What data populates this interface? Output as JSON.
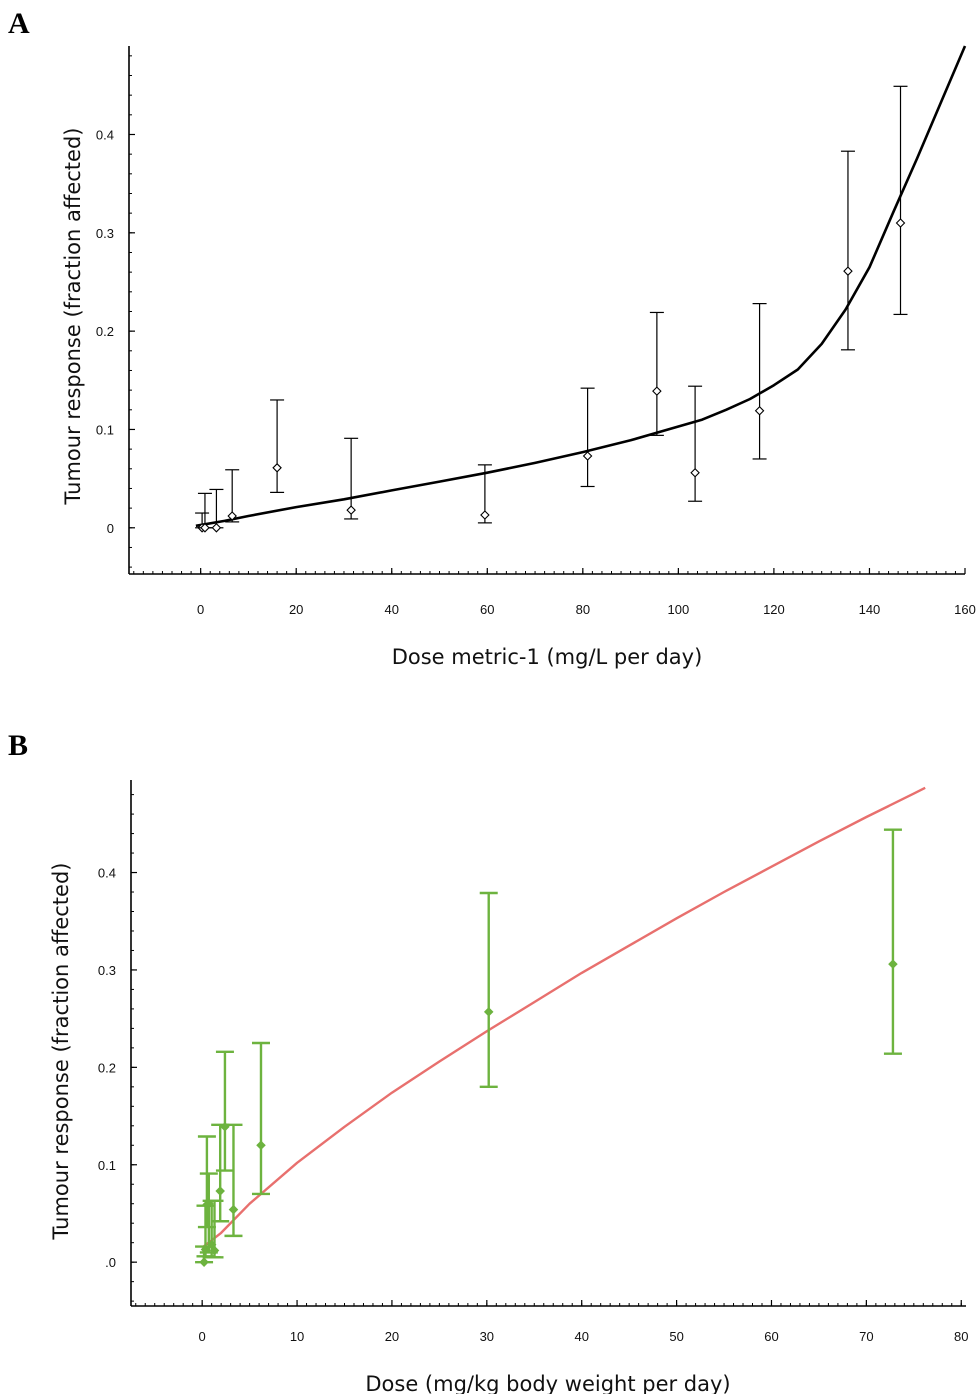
{
  "chart_data": [
    {
      "panel_label": "A",
      "type": "line",
      "xlabel": "Dose metric-1 (mg/L per day)",
      "ylabel": "Tumour response (fraction affected)",
      "xlim": [
        -15,
        160
      ],
      "ylim": [
        -0.047,
        0.49
      ],
      "xticks": [
        0,
        20,
        40,
        60,
        80,
        100,
        120,
        140,
        160
      ],
      "xtick_labels": [
        "0",
        "20",
        "40",
        "60",
        "80",
        "100",
        "120",
        "140",
        "160"
      ],
      "yticks": [
        0,
        0.1,
        0.2,
        0.3,
        0.4
      ],
      "ytick_labels": [
        "0",
        "0.1",
        "0.2",
        "0.3",
        "0.4"
      ],
      "grid": false,
      "colors": {
        "points": "#000000",
        "fit": "#000000"
      },
      "series": [
        {
          "type": "scatter_errorbar",
          "x": [
            0.3,
            0.9,
            3.3,
            6.6,
            16,
            31.5,
            59.5,
            81,
            95.5,
            103.5,
            117,
            135.5,
            146.5
          ],
          "y": [
            0.0,
            0.0,
            0.0,
            0.012,
            0.061,
            0.018,
            0.013,
            0.073,
            0.139,
            0.056,
            0.119,
            0.261,
            0.31
          ],
          "y_low": [
            0.0,
            0.0,
            0.0,
            0.006,
            0.036,
            0.009,
            0.005,
            0.042,
            0.094,
            0.027,
            0.07,
            0.181,
            0.217
          ],
          "y_high": [
            0.015,
            0.035,
            0.039,
            0.059,
            0.13,
            0.091,
            0.064,
            0.142,
            0.219,
            0.144,
            0.228,
            0.383,
            0.449
          ]
        },
        {
          "type": "line",
          "x": [
            -1,
            5,
            10,
            20,
            30,
            40,
            50,
            60,
            70,
            80,
            90,
            100,
            105,
            110,
            115,
            120,
            125,
            130,
            135,
            140,
            145,
            150,
            155,
            160
          ],
          "y": [
            0.002,
            0.007,
            0.012,
            0.021,
            0.029,
            0.038,
            0.047,
            0.056,
            0.066,
            0.077,
            0.089,
            0.103,
            0.11,
            0.12,
            0.131,
            0.145,
            0.161,
            0.187,
            0.222,
            0.265,
            0.321,
            0.376,
            0.433,
            0.49
          ]
        }
      ]
    },
    {
      "panel_label": "B",
      "type": "line",
      "xlabel": "Dose (mg/kg body weight per day)",
      "ylabel": "Tumour response (fraction affected)",
      "xlim": [
        -7.5,
        80.5
      ],
      "ylim": [
        -0.045,
        0.495
      ],
      "xticks": [
        0,
        10,
        20,
        30,
        40,
        50,
        60,
        70,
        80
      ],
      "xtick_labels": [
        "0",
        "10",
        "20",
        "30",
        "40",
        "50",
        "60",
        "70",
        "80"
      ],
      "yticks": [
        0,
        0.1,
        0.2,
        0.3,
        0.4
      ],
      "ytick_labels": [
        ".0",
        "0.1",
        "0.2",
        "0.3",
        "0.4"
      ],
      "grid": false,
      "colors": {
        "points": "#6db33f",
        "fit": "#e8706e"
      },
      "series": [
        {
          "type": "scatter_errorbar",
          "x": [
            0.2,
            0.35,
            0.5,
            0.7,
            1.0,
            1.3,
            1.9,
            2.4,
            3.3,
            6.2,
            30.2,
            72.8
          ],
          "y": [
            0.0,
            0.013,
            0.059,
            0.06,
            0.018,
            0.012,
            0.073,
            0.139,
            0.054,
            0.12,
            0.257,
            0.306
          ],
          "y_low": [
            0.0,
            0.006,
            0.036,
            0.01,
            0.005,
            0.005,
            0.042,
            0.094,
            0.027,
            0.07,
            0.18,
            0.214
          ],
          "y_high": [
            0.016,
            0.058,
            0.129,
            0.091,
            0.063,
            0.063,
            0.141,
            0.216,
            0.141,
            0.225,
            0.379,
            0.444
          ]
        },
        {
          "type": "line",
          "x": [
            0,
            2,
            5,
            10,
            15,
            20,
            25,
            30,
            35,
            40,
            45,
            50,
            55,
            60,
            65,
            70,
            75,
            76.2
          ],
          "y": [
            0.015,
            0.03,
            0.06,
            0.102,
            0.139,
            0.174,
            0.206,
            0.237,
            0.267,
            0.297,
            0.325,
            0.353,
            0.38,
            0.406,
            0.432,
            0.457,
            0.481,
            0.487
          ]
        }
      ]
    }
  ]
}
